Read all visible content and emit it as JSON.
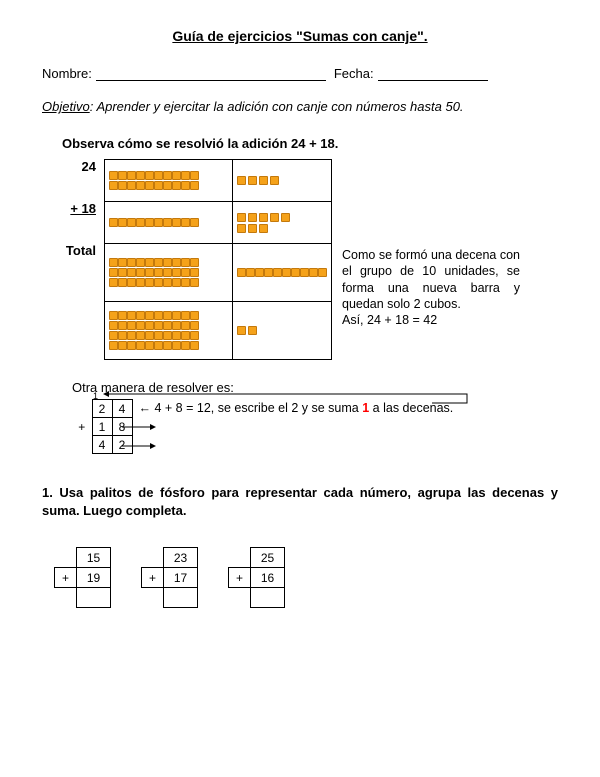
{
  "title": "Guía de ejercicios \"Sumas con canje\".",
  "nameLabel": "Nombre:",
  "dateLabel": "Fecha:",
  "objectiveLabel": "Objetivo",
  "objectiveText": ": Aprender y ejercitar la adición con canje con números hasta 50.",
  "observeText": "Observa cómo se resolvió la adición 24 + 18.",
  "labels": {
    "a": "24",
    "b": "+ 18",
    "total": "Total"
  },
  "blockRows": [
    {
      "tens": 2,
      "ones": 4
    },
    {
      "tens": 1,
      "ones": 8
    },
    {
      "tens": 3,
      "extraBar": true,
      "ones": 0
    },
    {
      "tens": 4,
      "ones": 2
    }
  ],
  "sideText1": "Como se formó una decena con el grupo de 10 unidades, se forma una nueva barra y quedan solo 2 cubos.",
  "sideText2": "Así, 24 + 18 = 42",
  "otherWayLabel": "Otra manera de resolver es:",
  "colSum": {
    "r1": {
      "t": "2",
      "o": "4"
    },
    "r2": {
      "sign": "+",
      "t": "1",
      "o": "8"
    },
    "r3": {
      "t": "4",
      "o": "2"
    }
  },
  "expl": {
    "pre": "← 4 + 8 = 12, se escribe el 2 y se suma ",
    "red": "1",
    "post": " a las decenas."
  },
  "exercise1": "1. Usa palitos de fósforo para representar cada número, agrupa las decenas y suma. Luego completa.",
  "miniProblems": [
    {
      "a": "15",
      "b": "19"
    },
    {
      "a": "23",
      "b": "17"
    },
    {
      "a": "25",
      "b": "16"
    }
  ],
  "colors": {
    "cube": "#f5a21a",
    "cubeBorder": "#c4790c"
  }
}
